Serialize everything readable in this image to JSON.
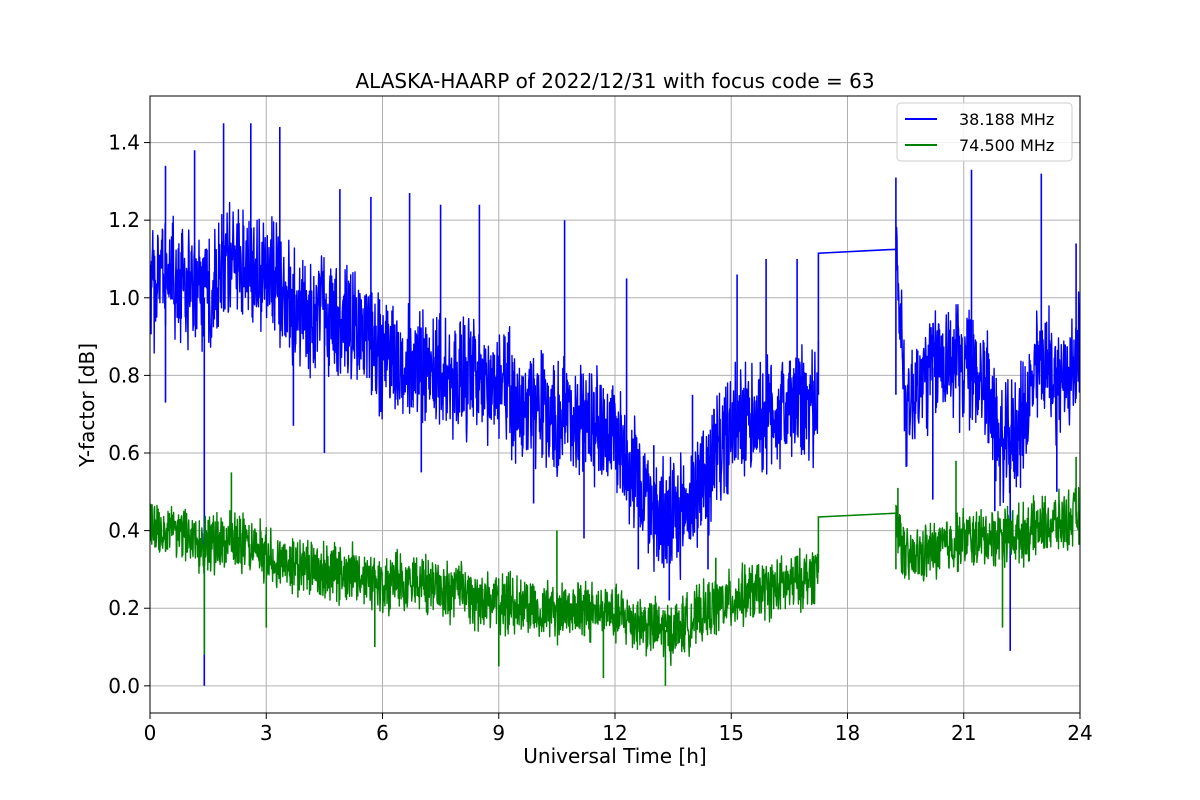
{
  "chart_data": {
    "type": "line",
    "title": "ALASKA-HAARP of 2022/12/31 with focus code = 63",
    "xlabel": "Universal Time [h]",
    "ylabel": "Y-factor [dB]",
    "xlim": [
      0,
      24
    ],
    "ylim": [
      -0.07,
      1.52
    ],
    "xticks": [
      0,
      3,
      6,
      9,
      12,
      15,
      18,
      21,
      24
    ],
    "xtick_labels": [
      "0",
      "3",
      "6",
      "9",
      "12",
      "15",
      "18",
      "21",
      "24"
    ],
    "yticks": [
      0.0,
      0.2,
      0.4,
      0.6,
      0.8,
      1.0,
      1.2,
      1.4
    ],
    "ytick_labels": [
      "0.0",
      "0.2",
      "0.4",
      "0.6",
      "0.8",
      "1.0",
      "1.2",
      "1.4"
    ],
    "grid": true,
    "legend_position": "top-right",
    "series": [
      {
        "name": "38.188 MHz",
        "color": "#0000ff",
        "points": [
          [
            0.0,
            1.02
          ],
          [
            0.5,
            1.05
          ],
          [
            1.0,
            1.03
          ],
          [
            1.4,
            1.0
          ],
          [
            2.0,
            1.1
          ],
          [
            2.5,
            1.08
          ],
          [
            3.0,
            1.07
          ],
          [
            3.5,
            1.0
          ],
          [
            4.0,
            0.95
          ],
          [
            4.5,
            0.97
          ],
          [
            5.0,
            0.92
          ],
          [
            5.5,
            0.92
          ],
          [
            6.0,
            0.85
          ],
          [
            6.5,
            0.83
          ],
          [
            7.0,
            0.83
          ],
          [
            7.5,
            0.82
          ],
          [
            8.0,
            0.8
          ],
          [
            8.5,
            0.78
          ],
          [
            9.0,
            0.78
          ],
          [
            9.5,
            0.74
          ],
          [
            10.0,
            0.72
          ],
          [
            10.5,
            0.68
          ],
          [
            11.0,
            0.7
          ],
          [
            11.5,
            0.68
          ],
          [
            12.0,
            0.65
          ],
          [
            12.5,
            0.55
          ],
          [
            13.0,
            0.45
          ],
          [
            13.5,
            0.42
          ],
          [
            14.0,
            0.48
          ],
          [
            14.5,
            0.58
          ],
          [
            15.0,
            0.66
          ],
          [
            15.5,
            0.68
          ],
          [
            16.0,
            0.7
          ],
          [
            16.5,
            0.72
          ],
          [
            17.0,
            0.72
          ],
          [
            17.25,
            0.75
          ],
          [
            17.25,
            1.115
          ],
          [
            19.25,
            1.125
          ],
          [
            19.25,
            0.75
          ],
          [
            19.5,
            0.72
          ],
          [
            20.0,
            0.8
          ],
          [
            20.5,
            0.85
          ],
          [
            21.0,
            0.82
          ],
          [
            21.5,
            0.8
          ],
          [
            22.0,
            0.6
          ],
          [
            22.5,
            0.68
          ],
          [
            23.0,
            0.85
          ],
          [
            23.5,
            0.78
          ],
          [
            24.0,
            0.85
          ]
        ],
        "spikes": [
          [
            0.4,
            1.34
          ],
          [
            0.4,
            0.73
          ],
          [
            1.15,
            1.38
          ],
          [
            1.4,
            0.0
          ],
          [
            1.9,
            1.45
          ],
          [
            2.6,
            1.45
          ],
          [
            3.35,
            1.44
          ],
          [
            3.7,
            0.67
          ],
          [
            4.5,
            0.6
          ],
          [
            4.9,
            1.28
          ],
          [
            5.7,
            1.26
          ],
          [
            6.7,
            1.27
          ],
          [
            7.0,
            0.55
          ],
          [
            7.5,
            1.24
          ],
          [
            8.5,
            1.24
          ],
          [
            9.9,
            0.47
          ],
          [
            10.7,
            1.2
          ],
          [
            11.2,
            0.38
          ],
          [
            12.3,
            1.05
          ],
          [
            12.6,
            0.3
          ],
          [
            13.0,
            0.62
          ],
          [
            13.4,
            0.22
          ],
          [
            14.0,
            0.75
          ],
          [
            14.4,
            0.3
          ],
          [
            15.15,
            1.06
          ],
          [
            15.9,
            1.1
          ],
          [
            16.7,
            1.1
          ],
          [
            19.25,
            1.31
          ],
          [
            20.2,
            0.48
          ],
          [
            21.2,
            1.33
          ],
          [
            21.8,
            0.45
          ],
          [
            22.2,
            0.09
          ],
          [
            23.0,
            1.32
          ],
          [
            23.4,
            0.5
          ],
          [
            23.9,
            1.14
          ]
        ]
      },
      {
        "name": "74.500 MHz",
        "color": "#008000",
        "points": [
          [
            0.0,
            0.42
          ],
          [
            0.5,
            0.4
          ],
          [
            1.0,
            0.38
          ],
          [
            1.4,
            0.36
          ],
          [
            2.0,
            0.37
          ],
          [
            2.5,
            0.36
          ],
          [
            3.0,
            0.34
          ],
          [
            3.5,
            0.32
          ],
          [
            4.0,
            0.31
          ],
          [
            4.5,
            0.3
          ],
          [
            5.0,
            0.29
          ],
          [
            5.5,
            0.28
          ],
          [
            6.0,
            0.27
          ],
          [
            6.5,
            0.26
          ],
          [
            7.0,
            0.26
          ],
          [
            7.5,
            0.25
          ],
          [
            8.0,
            0.24
          ],
          [
            8.5,
            0.22
          ],
          [
            9.0,
            0.21
          ],
          [
            9.5,
            0.21
          ],
          [
            10.0,
            0.2
          ],
          [
            10.5,
            0.19
          ],
          [
            11.0,
            0.2
          ],
          [
            11.5,
            0.19
          ],
          [
            12.0,
            0.18
          ],
          [
            12.5,
            0.17
          ],
          [
            13.0,
            0.15
          ],
          [
            13.5,
            0.14
          ],
          [
            14.0,
            0.17
          ],
          [
            14.5,
            0.2
          ],
          [
            15.0,
            0.22
          ],
          [
            15.5,
            0.24
          ],
          [
            16.0,
            0.25
          ],
          [
            16.5,
            0.26
          ],
          [
            17.0,
            0.28
          ],
          [
            17.25,
            0.3
          ],
          [
            17.25,
            0.435
          ],
          [
            19.25,
            0.445
          ],
          [
            19.25,
            0.3
          ],
          [
            19.5,
            0.32
          ],
          [
            20.0,
            0.34
          ],
          [
            20.5,
            0.36
          ],
          [
            21.0,
            0.38
          ],
          [
            21.5,
            0.38
          ],
          [
            22.0,
            0.39
          ],
          [
            22.5,
            0.39
          ],
          [
            23.0,
            0.41
          ],
          [
            23.5,
            0.42
          ],
          [
            24.0,
            0.44
          ]
        ],
        "spikes": [
          [
            1.4,
            0.08
          ],
          [
            2.1,
            0.55
          ],
          [
            3.0,
            0.15
          ],
          [
            5.8,
            0.1
          ],
          [
            9.0,
            0.05
          ],
          [
            10.5,
            0.4
          ],
          [
            11.7,
            0.02
          ],
          [
            13.3,
            0.0
          ],
          [
            14.6,
            0.33
          ],
          [
            19.3,
            0.51
          ],
          [
            20.8,
            0.58
          ],
          [
            22.0,
            0.15
          ],
          [
            23.9,
            0.59
          ]
        ]
      }
    ]
  }
}
